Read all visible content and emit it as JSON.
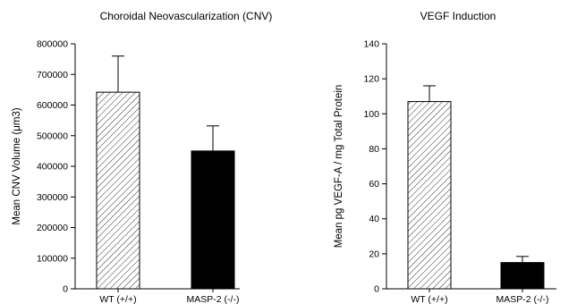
{
  "chart_data": [
    {
      "type": "bar",
      "title": "Choroidal Neovascularization (CNV)",
      "xlabel": "",
      "ylabel": "Mean CNV Volume (μm3)",
      "categories": [
        "WT (+/+)",
        "MASP-2 (-/-)"
      ],
      "values": [
        642000,
        450000
      ],
      "errors": [
        118000,
        82000
      ],
      "ylim": [
        0,
        800000
      ],
      "yticks": [
        "0",
        "100000",
        "200000",
        "300000",
        "400000",
        "500000",
        "600000",
        "700000",
        "800000"
      ],
      "ytick_values": [
        0,
        100000,
        200000,
        300000,
        400000,
        500000,
        600000,
        700000,
        800000
      ],
      "bar_fills": [
        "hatched",
        "solid-black"
      ],
      "grid": false,
      "legend": "none"
    },
    {
      "type": "bar",
      "title": "VEGF Induction",
      "xlabel": "",
      "ylabel": "Mean pg VEGF-A / mg Total Protein",
      "categories": [
        "WT (+/+)",
        "MASP-2 (-/-)"
      ],
      "values": [
        107,
        15
      ],
      "errors": [
        9,
        3.5
      ],
      "ylim": [
        0,
        140
      ],
      "yticks": [
        "0",
        "20",
        "40",
        "60",
        "80",
        "100",
        "120",
        "140"
      ],
      "ytick_values": [
        0,
        20,
        40,
        60,
        80,
        100,
        120,
        140
      ],
      "bar_fills": [
        "hatched",
        "solid-black"
      ],
      "grid": false,
      "legend": "none"
    }
  ]
}
